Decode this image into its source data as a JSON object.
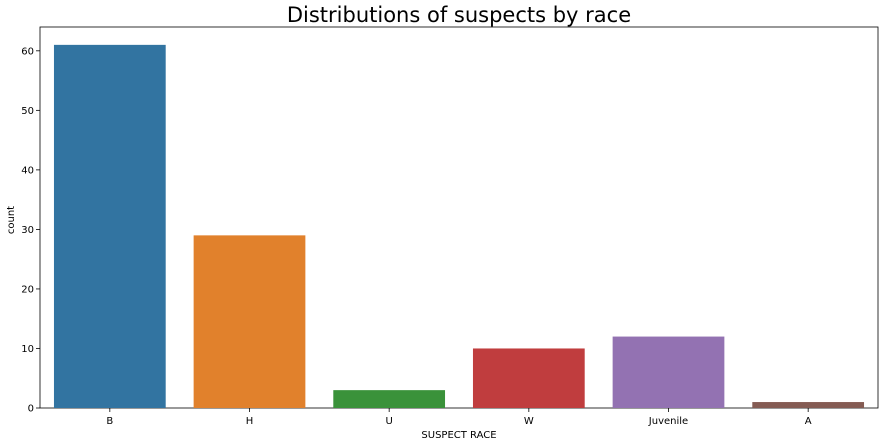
{
  "chart_data": {
    "type": "bar",
    "title": "Distributions of suspects by race",
    "xlabel": "SUSPECT RACE",
    "ylabel": "count",
    "categories": [
      "B",
      "H",
      "U",
      "W",
      "Juvenile",
      "A"
    ],
    "values": [
      61,
      29,
      3,
      10,
      12,
      1
    ],
    "colors": [
      "#3274a1",
      "#e1812c",
      "#3a923a",
      "#c03d3e",
      "#9372b2",
      "#845b53"
    ],
    "ylim": [
      0,
      64
    ],
    "yticks": [
      0,
      10,
      20,
      30,
      40,
      50,
      60
    ],
    "grid": false,
    "legend": "none"
  }
}
